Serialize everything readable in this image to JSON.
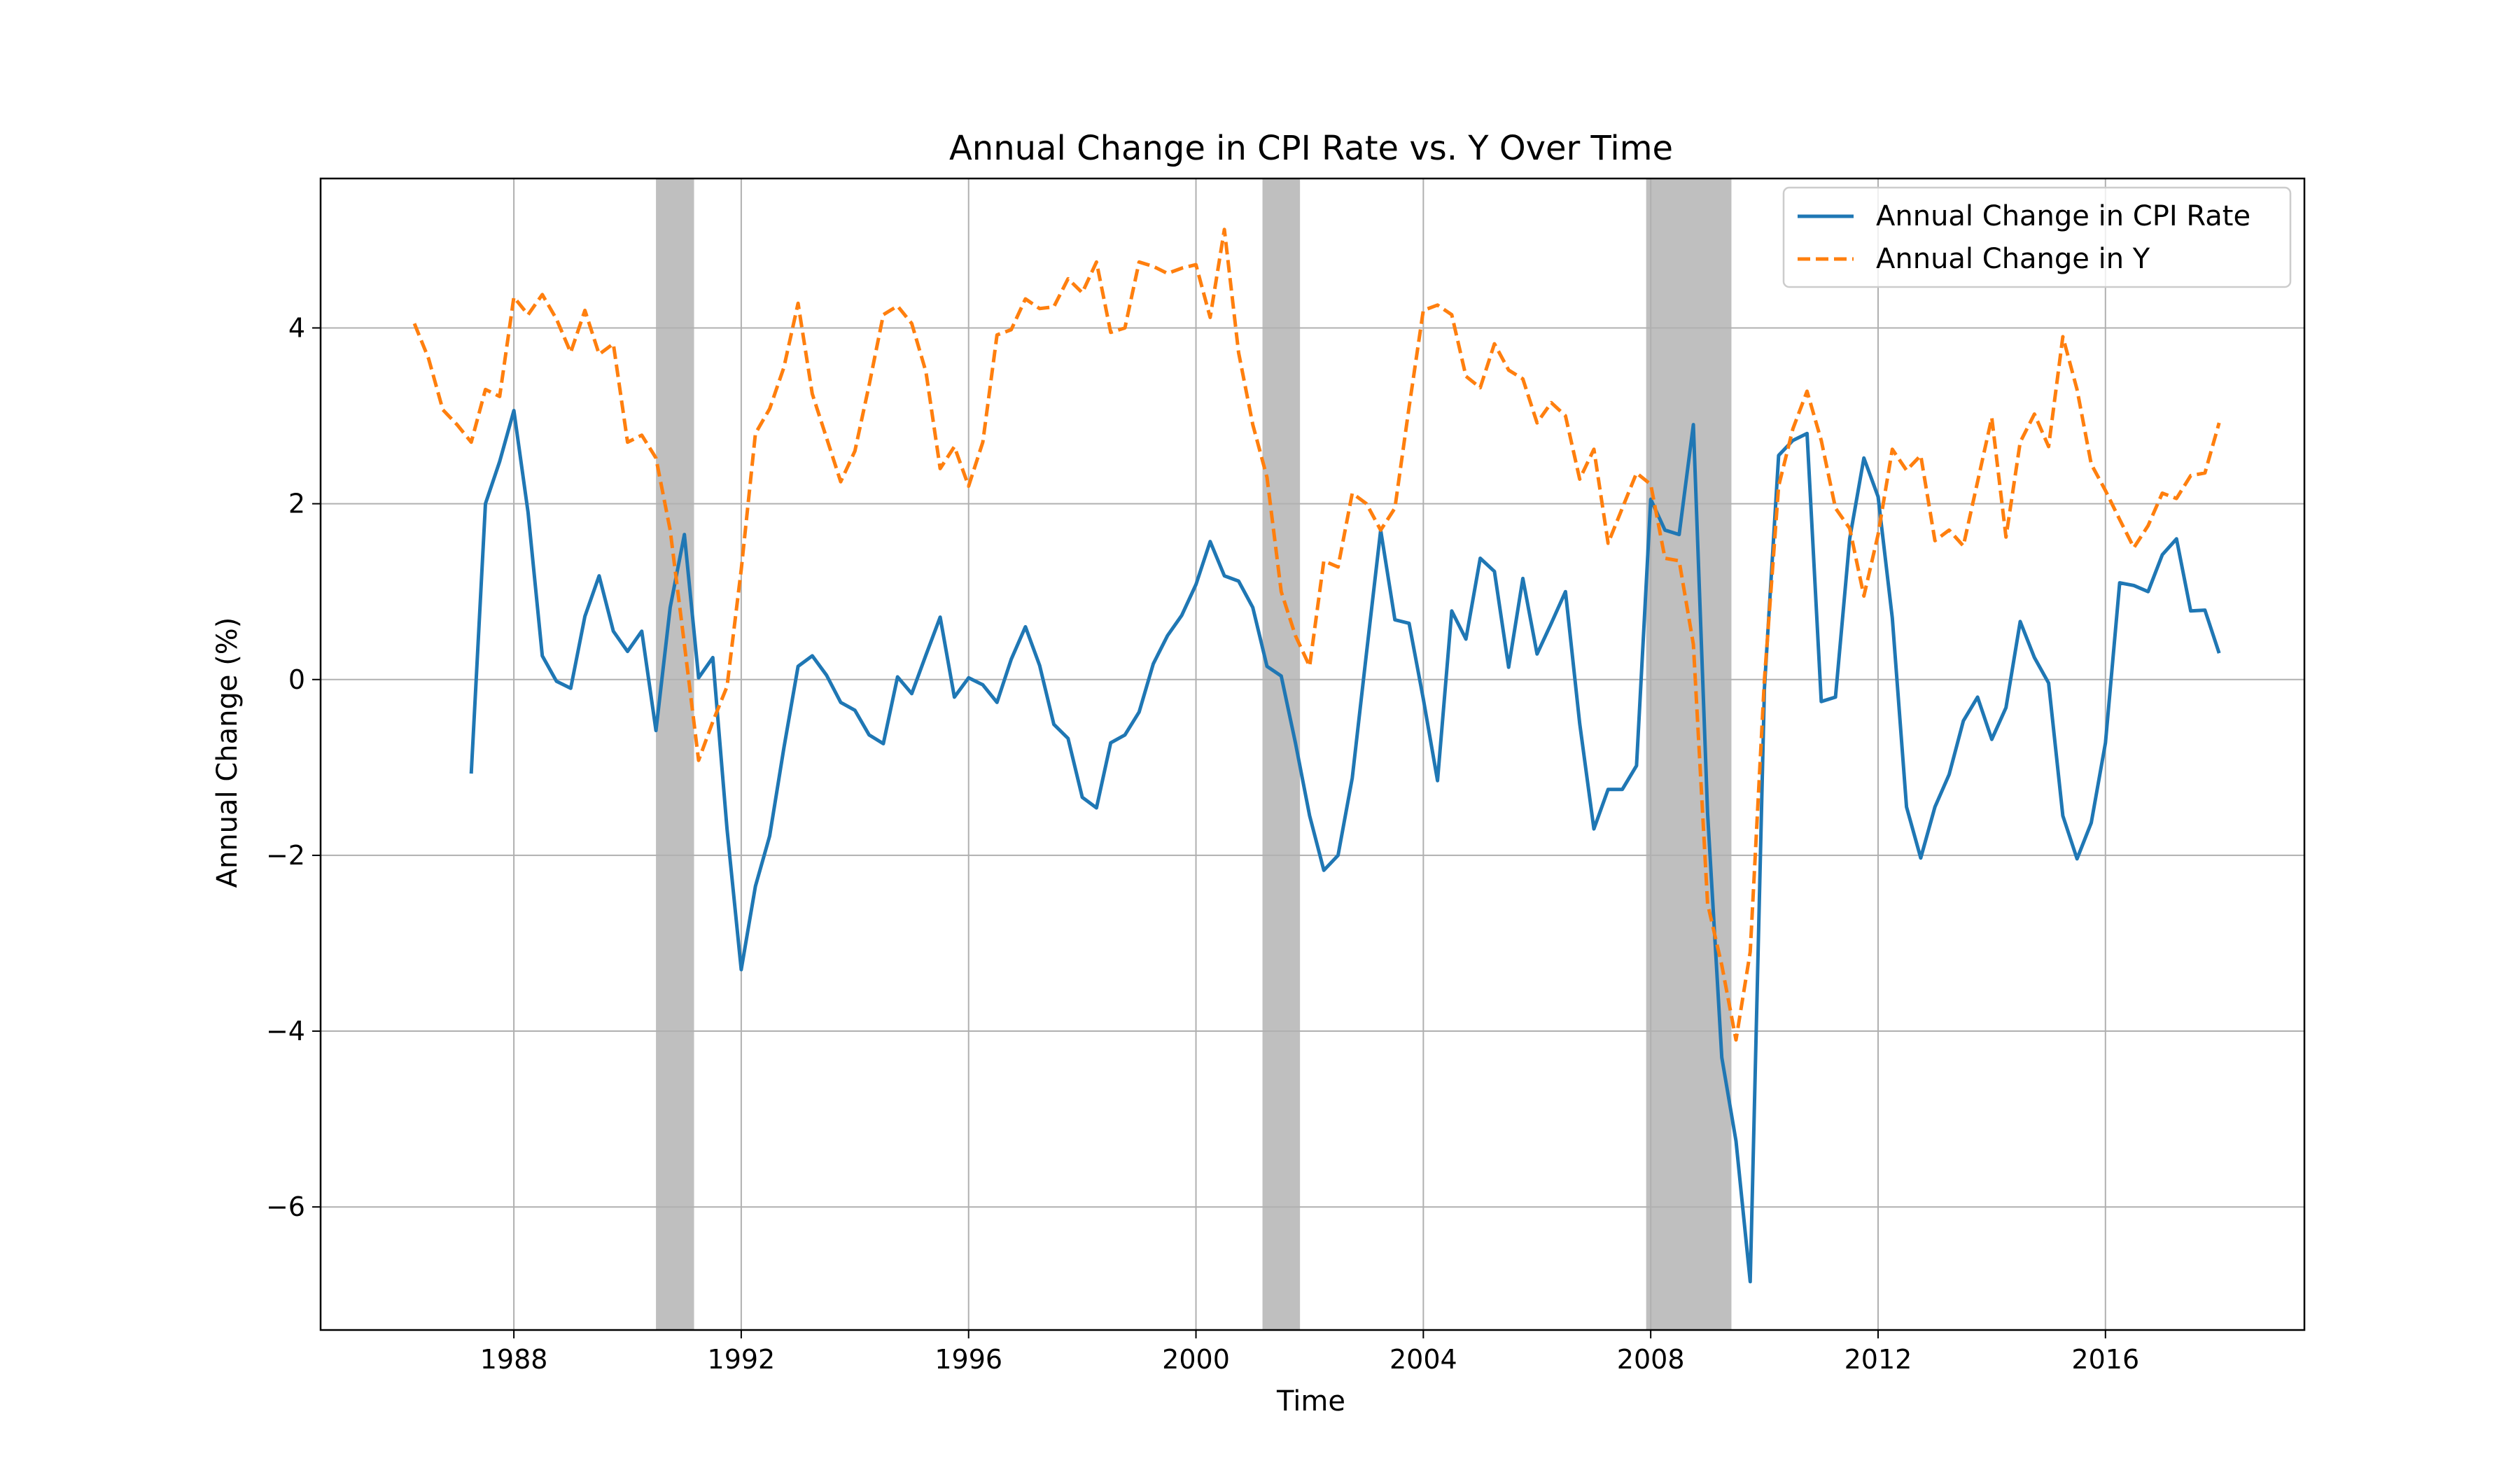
{
  "chart_data": {
    "type": "line",
    "title": "Annual Change in CPI Rate vs. Y Over Time",
    "xlabel": "Time",
    "ylabel": "Annual Change (%)",
    "xlim": [
      1984.6,
      2019.5
    ],
    "ylim": [
      -7.4,
      5.7
    ],
    "xticks": [
      1988,
      1992,
      1996,
      2000,
      2004,
      2008,
      2012,
      2016
    ],
    "yticks": [
      -6,
      -4,
      -2,
      0,
      2,
      4
    ],
    "ytick_labels": [
      "−6",
      "−4",
      "−2",
      "0",
      "2",
      "4"
    ],
    "grid": true,
    "legend_position": "top-right",
    "shaded_periods": [
      {
        "start": 1990.5,
        "end": 1991.17
      },
      {
        "start": 2001.17,
        "end": 2001.83
      },
      {
        "start": 2007.92,
        "end": 2009.42
      }
    ],
    "series": [
      {
        "name": "Annual Change in CPI Rate",
        "color": "#1f77b4",
        "style": "solid",
        "points": [
          [
            1987.25,
            -1.07
          ],
          [
            1987.5,
            2.0
          ],
          [
            1987.75,
            2.48
          ],
          [
            1988.0,
            3.06
          ],
          [
            1988.25,
            1.9
          ],
          [
            1988.5,
            0.27
          ],
          [
            1988.75,
            -0.02
          ],
          [
            1989.0,
            -0.1
          ],
          [
            1989.25,
            0.72
          ],
          [
            1989.5,
            1.18
          ],
          [
            1989.75,
            0.55
          ],
          [
            1990.0,
            0.32
          ],
          [
            1990.25,
            0.55
          ],
          [
            1990.5,
            -0.58
          ],
          [
            1990.75,
            0.82
          ],
          [
            1991.0,
            1.65
          ],
          [
            1991.25,
            0.02
          ],
          [
            1991.5,
            0.25
          ],
          [
            1991.75,
            -1.7
          ],
          [
            1992.0,
            -3.3
          ],
          [
            1992.25,
            -2.35
          ],
          [
            1992.5,
            -1.78
          ],
          [
            1992.75,
            -0.78
          ],
          [
            1993.0,
            0.15
          ],
          [
            1993.25,
            0.27
          ],
          [
            1993.5,
            0.05
          ],
          [
            1993.75,
            -0.26
          ],
          [
            1994.0,
            -0.35
          ],
          [
            1994.25,
            -0.63
          ],
          [
            1994.5,
            -0.73
          ],
          [
            1994.75,
            0.03
          ],
          [
            1995.0,
            -0.16
          ],
          [
            1995.25,
            0.28
          ],
          [
            1995.5,
            0.71
          ],
          [
            1995.75,
            -0.2
          ],
          [
            1996.0,
            0.02
          ],
          [
            1996.25,
            -0.06
          ],
          [
            1996.5,
            -0.26
          ],
          [
            1996.75,
            0.23
          ],
          [
            1997.0,
            0.6
          ],
          [
            1997.25,
            0.16
          ],
          [
            1997.5,
            -0.51
          ],
          [
            1997.75,
            -0.67
          ],
          [
            1998.0,
            -1.34
          ],
          [
            1998.25,
            -1.46
          ],
          [
            1998.5,
            -0.72
          ],
          [
            1998.75,
            -0.63
          ],
          [
            1999.0,
            -0.37
          ],
          [
            1999.25,
            0.18
          ],
          [
            1999.5,
            0.5
          ],
          [
            1999.75,
            0.73
          ],
          [
            2000.0,
            1.08
          ],
          [
            2000.25,
            1.57
          ],
          [
            2000.5,
            1.18
          ],
          [
            2000.75,
            1.12
          ],
          [
            2001.0,
            0.82
          ],
          [
            2001.25,
            0.15
          ],
          [
            2001.5,
            0.04
          ],
          [
            2001.75,
            -0.72
          ],
          [
            2002.0,
            -1.55
          ],
          [
            2002.25,
            -2.17
          ],
          [
            2002.5,
            -2.0
          ],
          [
            2002.75,
            -1.12
          ],
          [
            2003.0,
            0.3
          ],
          [
            2003.25,
            1.7
          ],
          [
            2003.5,
            0.68
          ],
          [
            2003.75,
            0.64
          ],
          [
            2004.0,
            -0.22
          ],
          [
            2004.25,
            -1.15
          ],
          [
            2004.5,
            0.78
          ],
          [
            2004.75,
            0.46
          ],
          [
            2005.0,
            1.38
          ],
          [
            2005.25,
            1.23
          ],
          [
            2005.5,
            0.14
          ],
          [
            2005.75,
            1.15
          ],
          [
            2006.0,
            0.29
          ],
          [
            2006.25,
            0.64
          ],
          [
            2006.5,
            1.0
          ],
          [
            2006.75,
            -0.5
          ],
          [
            2007.0,
            -1.7
          ],
          [
            2007.25,
            -1.25
          ],
          [
            2007.5,
            -1.25
          ],
          [
            2007.75,
            -0.98
          ],
          [
            2008.0,
            2.05
          ],
          [
            2008.25,
            1.7
          ],
          [
            2008.5,
            1.65
          ],
          [
            2008.75,
            2.9
          ],
          [
            2009.0,
            -1.52
          ],
          [
            2009.25,
            -4.3
          ],
          [
            2009.5,
            -5.25
          ],
          [
            2009.75,
            -6.85
          ],
          [
            2010.0,
            -0.1
          ],
          [
            2010.25,
            2.55
          ],
          [
            2010.5,
            2.72
          ],
          [
            2010.75,
            2.8
          ],
          [
            2011.0,
            -0.25
          ],
          [
            2011.25,
            -0.2
          ],
          [
            2011.5,
            1.6
          ],
          [
            2011.75,
            2.52
          ],
          [
            2012.0,
            2.08
          ],
          [
            2012.25,
            0.7
          ],
          [
            2012.5,
            -1.45
          ],
          [
            2012.75,
            -2.03
          ],
          [
            2013.0,
            -1.45
          ],
          [
            2013.25,
            -1.08
          ],
          [
            2013.5,
            -0.47
          ],
          [
            2013.75,
            -0.2
          ],
          [
            2014.0,
            -0.68
          ],
          [
            2014.25,
            -0.32
          ],
          [
            2014.5,
            0.66
          ],
          [
            2014.75,
            0.25
          ],
          [
            2015.0,
            -0.04
          ],
          [
            2015.25,
            -1.55
          ],
          [
            2015.5,
            -2.04
          ],
          [
            2015.75,
            -1.63
          ],
          [
            2016.0,
            -0.72
          ],
          [
            2016.25,
            1.1
          ],
          [
            2016.5,
            1.07
          ],
          [
            2016.75,
            1.0
          ],
          [
            2017.0,
            1.42
          ],
          [
            2017.25,
            1.6
          ],
          [
            2017.5,
            0.78
          ],
          [
            2017.75,
            0.79
          ],
          [
            2018.0,
            0.3
          ]
        ]
      },
      {
        "name": "Annual Change in Y",
        "color": "#ff7f0e",
        "style": "dashed",
        "points": [
          [
            1986.25,
            4.05
          ],
          [
            1986.5,
            3.65
          ],
          [
            1986.75,
            3.07
          ],
          [
            1987.0,
            2.9
          ],
          [
            1987.25,
            2.7
          ],
          [
            1987.5,
            3.3
          ],
          [
            1987.75,
            3.22
          ],
          [
            1988.0,
            4.35
          ],
          [
            1988.25,
            4.15
          ],
          [
            1988.5,
            4.38
          ],
          [
            1988.75,
            4.1
          ],
          [
            1989.0,
            3.72
          ],
          [
            1989.25,
            4.2
          ],
          [
            1989.5,
            3.7
          ],
          [
            1989.75,
            3.82
          ],
          [
            1990.0,
            2.7
          ],
          [
            1990.25,
            2.78
          ],
          [
            1990.5,
            2.52
          ],
          [
            1990.75,
            1.7
          ],
          [
            1991.0,
            0.4
          ],
          [
            1991.25,
            -0.92
          ],
          [
            1991.5,
            -0.48
          ],
          [
            1991.75,
            -0.08
          ],
          [
            1992.0,
            1.25
          ],
          [
            1992.25,
            2.8
          ],
          [
            1992.5,
            3.08
          ],
          [
            1992.75,
            3.55
          ],
          [
            1993.0,
            4.28
          ],
          [
            1993.25,
            3.25
          ],
          [
            1993.5,
            2.75
          ],
          [
            1993.75,
            2.25
          ],
          [
            1994.0,
            2.6
          ],
          [
            1994.25,
            3.35
          ],
          [
            1994.5,
            4.15
          ],
          [
            1994.75,
            4.25
          ],
          [
            1995.0,
            4.05
          ],
          [
            1995.25,
            3.5
          ],
          [
            1995.5,
            2.4
          ],
          [
            1995.75,
            2.65
          ],
          [
            1996.0,
            2.2
          ],
          [
            1996.25,
            2.7
          ],
          [
            1996.5,
            3.92
          ],
          [
            1996.75,
            3.98
          ],
          [
            1997.0,
            4.33
          ],
          [
            1997.25,
            4.22
          ],
          [
            1997.5,
            4.24
          ],
          [
            1997.75,
            4.56
          ],
          [
            1998.0,
            4.4
          ],
          [
            1998.25,
            4.75
          ],
          [
            1998.5,
            3.95
          ],
          [
            1998.75,
            4.0
          ],
          [
            1999.0,
            4.75
          ],
          [
            1999.25,
            4.7
          ],
          [
            1999.5,
            4.62
          ],
          [
            1999.75,
            4.68
          ],
          [
            2000.0,
            4.72
          ],
          [
            2000.25,
            4.12
          ],
          [
            2000.5,
            5.12
          ],
          [
            2000.75,
            3.72
          ],
          [
            2001.0,
            2.9
          ],
          [
            2001.25,
            2.3
          ],
          [
            2001.5,
            1.0
          ],
          [
            2001.75,
            0.5
          ],
          [
            2002.0,
            0.15
          ],
          [
            2002.25,
            1.35
          ],
          [
            2002.5,
            1.28
          ],
          [
            2002.75,
            2.12
          ],
          [
            2003.0,
            2.0
          ],
          [
            2003.25,
            1.7
          ],
          [
            2003.5,
            1.95
          ],
          [
            2003.75,
            3.1
          ],
          [
            2004.0,
            4.2
          ],
          [
            2004.25,
            4.26
          ],
          [
            2004.5,
            4.15
          ],
          [
            2004.75,
            3.45
          ],
          [
            2005.0,
            3.32
          ],
          [
            2005.25,
            3.82
          ],
          [
            2005.5,
            3.52
          ],
          [
            2005.75,
            3.42
          ],
          [
            2006.0,
            2.92
          ],
          [
            2006.25,
            3.15
          ],
          [
            2006.5,
            3.0
          ],
          [
            2006.75,
            2.28
          ],
          [
            2007.0,
            2.62
          ],
          [
            2007.25,
            1.55
          ],
          [
            2007.5,
            1.95
          ],
          [
            2007.75,
            2.35
          ],
          [
            2008.0,
            2.22
          ],
          [
            2008.25,
            1.38
          ],
          [
            2008.5,
            1.35
          ],
          [
            2008.75,
            0.4
          ],
          [
            2009.0,
            -2.55
          ],
          [
            2009.25,
            -3.25
          ],
          [
            2009.5,
            -4.1
          ],
          [
            2009.75,
            -3.1
          ],
          [
            2010.0,
            0.0
          ],
          [
            2010.25,
            2.2
          ],
          [
            2010.5,
            2.85
          ],
          [
            2010.75,
            3.28
          ],
          [
            2011.0,
            2.72
          ],
          [
            2011.25,
            1.95
          ],
          [
            2011.5,
            1.72
          ],
          [
            2011.75,
            0.95
          ],
          [
            2012.0,
            1.65
          ],
          [
            2012.25,
            2.62
          ],
          [
            2012.5,
            2.38
          ],
          [
            2012.75,
            2.55
          ],
          [
            2013.0,
            1.58
          ],
          [
            2013.25,
            1.7
          ],
          [
            2013.5,
            1.52
          ],
          [
            2013.75,
            2.25
          ],
          [
            2014.0,
            2.98
          ],
          [
            2014.25,
            1.62
          ],
          [
            2014.5,
            2.7
          ],
          [
            2014.75,
            3.02
          ],
          [
            2015.0,
            2.65
          ],
          [
            2015.25,
            3.9
          ],
          [
            2015.5,
            3.3
          ],
          [
            2015.75,
            2.45
          ],
          [
            2016.0,
            2.15
          ],
          [
            2016.25,
            1.82
          ],
          [
            2016.5,
            1.5
          ],
          [
            2016.75,
            1.75
          ],
          [
            2017.0,
            2.12
          ],
          [
            2017.25,
            2.06
          ],
          [
            2017.5,
            2.32
          ],
          [
            2017.75,
            2.35
          ],
          [
            2018.0,
            2.92
          ]
        ]
      }
    ]
  }
}
